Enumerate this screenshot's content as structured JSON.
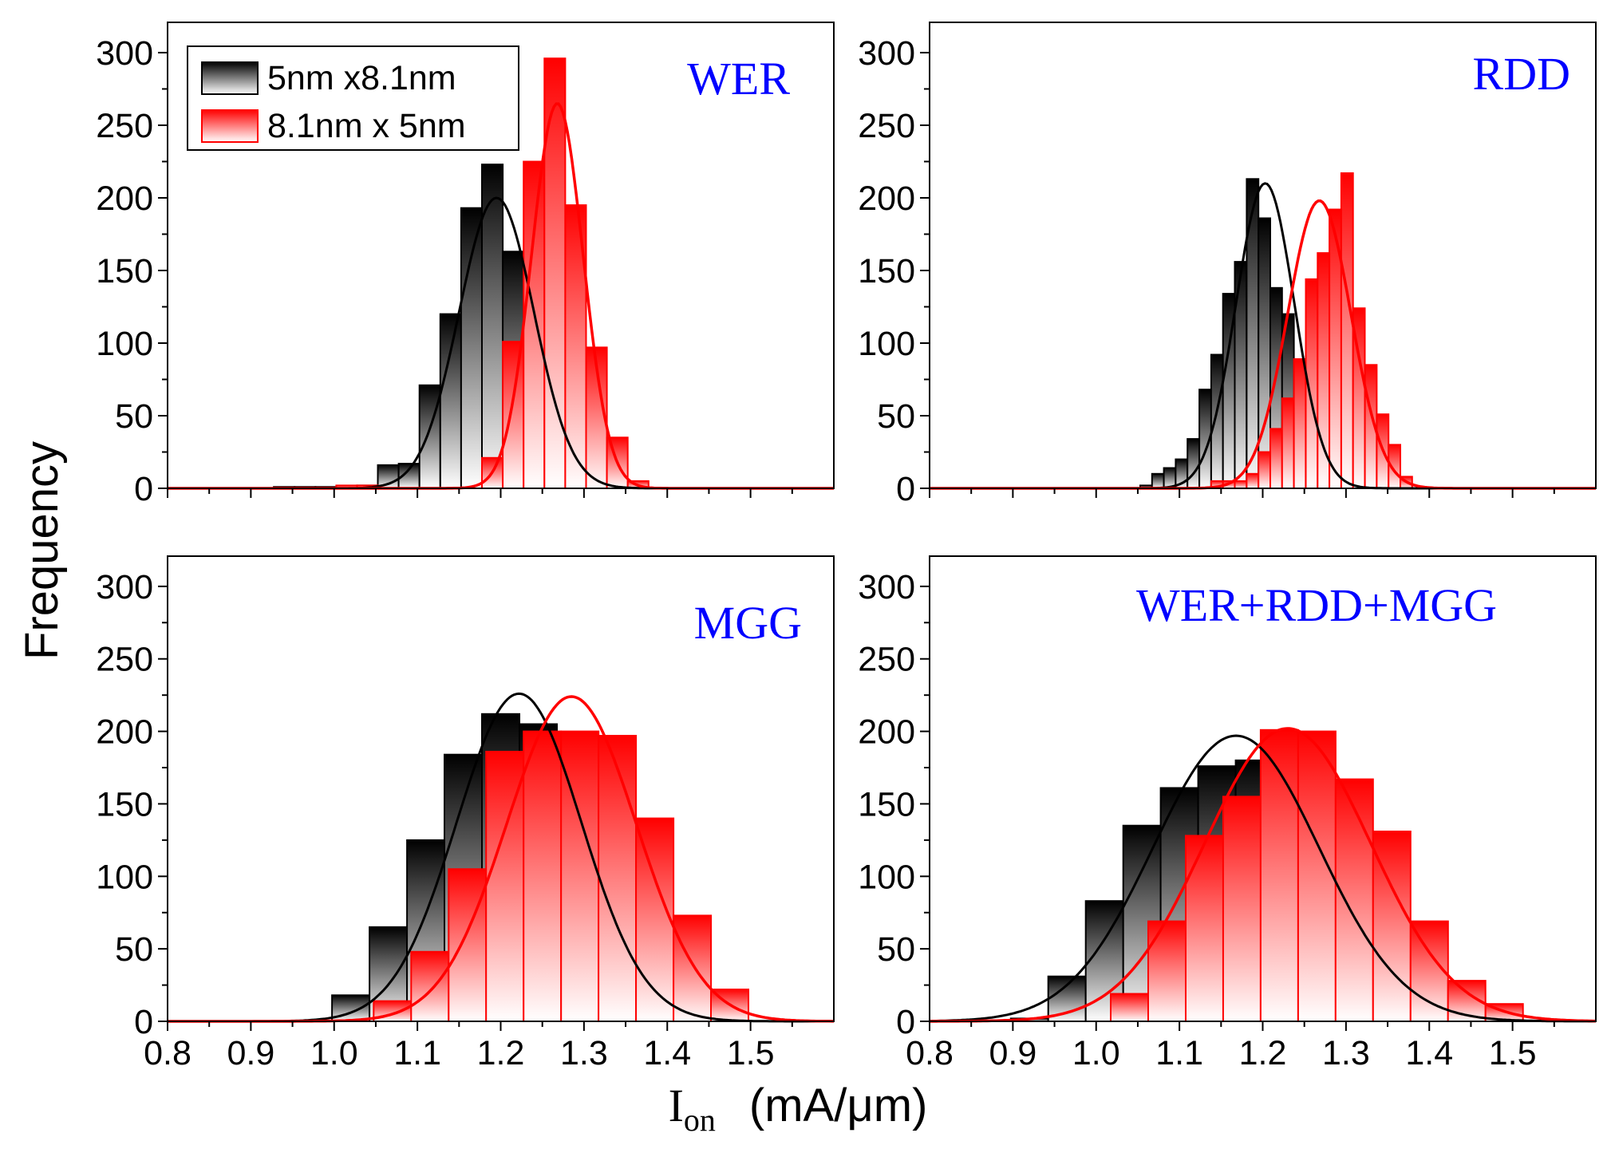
{
  "chart_data": [
    {
      "type": "bar",
      "title": "WER",
      "xlabel": "Ion (mA/μm)",
      "ylabel": "Frequency",
      "xlim": [
        0.8,
        1.6
      ],
      "ylim": [
        0,
        320
      ],
      "xticks": [
        "0.8",
        "0.9",
        "1.0",
        "1.1",
        "1.2",
        "1.3",
        "1.4",
        "1.5"
      ],
      "yticks": [
        "0",
        "50",
        "100",
        "150",
        "200",
        "250",
        "300"
      ],
      "bin_width": 0.025,
      "legend": {
        "position": "top-left",
        "entries": [
          "5nm x8.1nm",
          "8.1nm x 5nm"
        ]
      },
      "series": [
        {
          "name": "5nm x8.1nm",
          "color": "#000000",
          "x": [
            0.94,
            0.965,
            0.99,
            1.015,
            1.04,
            1.065,
            1.09,
            1.115,
            1.14,
            1.165,
            1.19,
            1.215,
            1.24,
            1.265,
            1.29,
            1.315
          ],
          "values": [
            1,
            1,
            1,
            1,
            2,
            16,
            17,
            71,
            120,
            193,
            223,
            163,
            110,
            40,
            20,
            3
          ],
          "fit": {
            "mean": 1.195,
            "sigma": 0.045,
            "peak": 200
          }
        },
        {
          "name": "8.1nm x 5nm",
          "color": "#ff0000",
          "x": [
            1.015,
            1.04,
            1.065,
            1.09,
            1.115,
            1.14,
            1.165,
            1.19,
            1.215,
            1.24,
            1.265,
            1.29,
            1.315,
            1.34,
            1.365
          ],
          "values": [
            2,
            2,
            0,
            0,
            0,
            0,
            0,
            21,
            101,
            225,
            296,
            195,
            97,
            35,
            5
          ],
          "fit": {
            "mean": 1.268,
            "sigma": 0.031,
            "peak": 265
          }
        }
      ]
    },
    {
      "type": "bar",
      "title": "RDD",
      "xlabel": "Ion (mA/μm)",
      "ylabel": "Frequency",
      "xlim": [
        0.8,
        1.6
      ],
      "ylim": [
        0,
        320
      ],
      "xticks": [
        "0.8",
        "0.9",
        "1.0",
        "1.1",
        "1.2",
        "1.3",
        "1.4",
        "1.5"
      ],
      "yticks": [
        "0",
        "50",
        "100",
        "150",
        "200",
        "250",
        "300"
      ],
      "bin_width": 0.0142,
      "series": [
        {
          "name": "5nm x8.1nm",
          "color": "#000000",
          "x": [
            1.06,
            1.0742,
            1.0884,
            1.1026,
            1.1168,
            1.131,
            1.1452,
            1.1594,
            1.1736,
            1.1878,
            1.202,
            1.2162,
            1.2304,
            1.2446,
            1.2588,
            1.273,
            1.2872,
            1.3014
          ],
          "values": [
            2,
            10,
            14,
            20,
            34,
            68,
            92,
            134,
            156,
            213,
            186,
            138,
            120,
            78,
            48,
            31,
            12,
            3
          ],
          "fit": {
            "mean": 1.203,
            "sigma": 0.035,
            "peak": 210
          }
        },
        {
          "name": "8.1nm x 5nm",
          "color": "#ff0000",
          "x": [
            1.1452,
            1.1594,
            1.1736,
            1.1878,
            1.202,
            1.2162,
            1.2304,
            1.2446,
            1.2588,
            1.273,
            1.2872,
            1.3014,
            1.3156,
            1.3298,
            1.344,
            1.3582,
            1.3724
          ],
          "values": [
            5,
            5,
            5,
            10,
            25,
            41,
            62,
            89,
            144,
            162,
            192,
            217,
            124,
            85,
            51,
            30,
            8
          ],
          "fit": {
            "mean": 1.268,
            "sigma": 0.038,
            "peak": 198
          }
        }
      ]
    },
    {
      "type": "bar",
      "title": "MGG",
      "xlabel": "Ion (mA/μm)",
      "ylabel": "Frequency",
      "xlim": [
        0.8,
        1.6
      ],
      "ylim": [
        0,
        320
      ],
      "xticks": [
        "0.8",
        "0.9",
        "1.0",
        "1.1",
        "1.2",
        "1.3",
        "1.4",
        "1.5"
      ],
      "yticks": [
        "0",
        "50",
        "100",
        "150",
        "200",
        "250",
        "300"
      ],
      "bin_width": 0.045,
      "series": [
        {
          "name": "5nm x8.1nm",
          "color": "#000000",
          "x": [
            1.02,
            1.065,
            1.11,
            1.155,
            1.2,
            1.245,
            1.29,
            1.335,
            1.38,
            1.425,
            1.47,
            1.515
          ],
          "values": [
            18,
            65,
            125,
            184,
            212,
            205,
            110,
            55,
            17,
            4,
            1,
            0
          ],
          "fit": {
            "mean": 1.222,
            "sigma": 0.075,
            "peak": 226
          }
        },
        {
          "name": "8.1nm x 5nm",
          "color": "#ff0000",
          "x": [
            1.07,
            1.115,
            1.16,
            1.205,
            1.25,
            1.295,
            1.34,
            1.385,
            1.43,
            1.475
          ],
          "values": [
            14,
            48,
            105,
            186,
            200,
            200,
            197,
            140,
            73,
            22
          ],
          "fit": {
            "mean": 1.285,
            "sigma": 0.078,
            "peak": 224
          }
        }
      ]
    },
    {
      "type": "bar",
      "title": "WER+RDD+MGG",
      "xlabel": "Ion (mA/μm)",
      "ylabel": "Frequency",
      "xlim": [
        0.8,
        1.6
      ],
      "ylim": [
        0,
        320
      ],
      "xticks": [
        "0.8",
        "0.9",
        "1.0",
        "1.1",
        "1.2",
        "1.3",
        "1.4",
        "1.5"
      ],
      "yticks": [
        "0",
        "50",
        "100",
        "150",
        "200",
        "250",
        "300"
      ],
      "bin_width": 0.045,
      "series": [
        {
          "name": "5nm x8.1nm",
          "color": "#000000",
          "x": [
            0.92,
            0.965,
            1.01,
            1.055,
            1.1,
            1.145,
            1.19,
            1.235,
            1.28,
            1.325,
            1.37,
            1.415,
            1.46
          ],
          "values": [
            2,
            31,
            83,
            135,
            161,
            176,
            180,
            152,
            109,
            66,
            27,
            8,
            3
          ],
          "fit": {
            "mean": 1.168,
            "sigma": 0.1,
            "peak": 197
          }
        },
        {
          "name": "8.1nm x 5nm",
          "color": "#ff0000",
          "x": [
            1.04,
            1.085,
            1.13,
            1.175,
            1.22,
            1.265,
            1.31,
            1.355,
            1.4,
            1.445,
            1.49
          ],
          "values": [
            19,
            69,
            128,
            155,
            201,
            200,
            167,
            131,
            69,
            28,
            12
          ],
          "fit": {
            "mean": 1.23,
            "sigma": 0.1,
            "peak": 202
          }
        }
      ]
    }
  ],
  "figure_labels": {
    "ylabel": "Frequency",
    "xlabel_main": "I",
    "xlabel_sub": "on",
    "xlabel_unit": "(mA/μm)"
  },
  "colors": {
    "series_black": "#000000",
    "series_red": "#ff0000",
    "title_blue": "#0000ff"
  }
}
